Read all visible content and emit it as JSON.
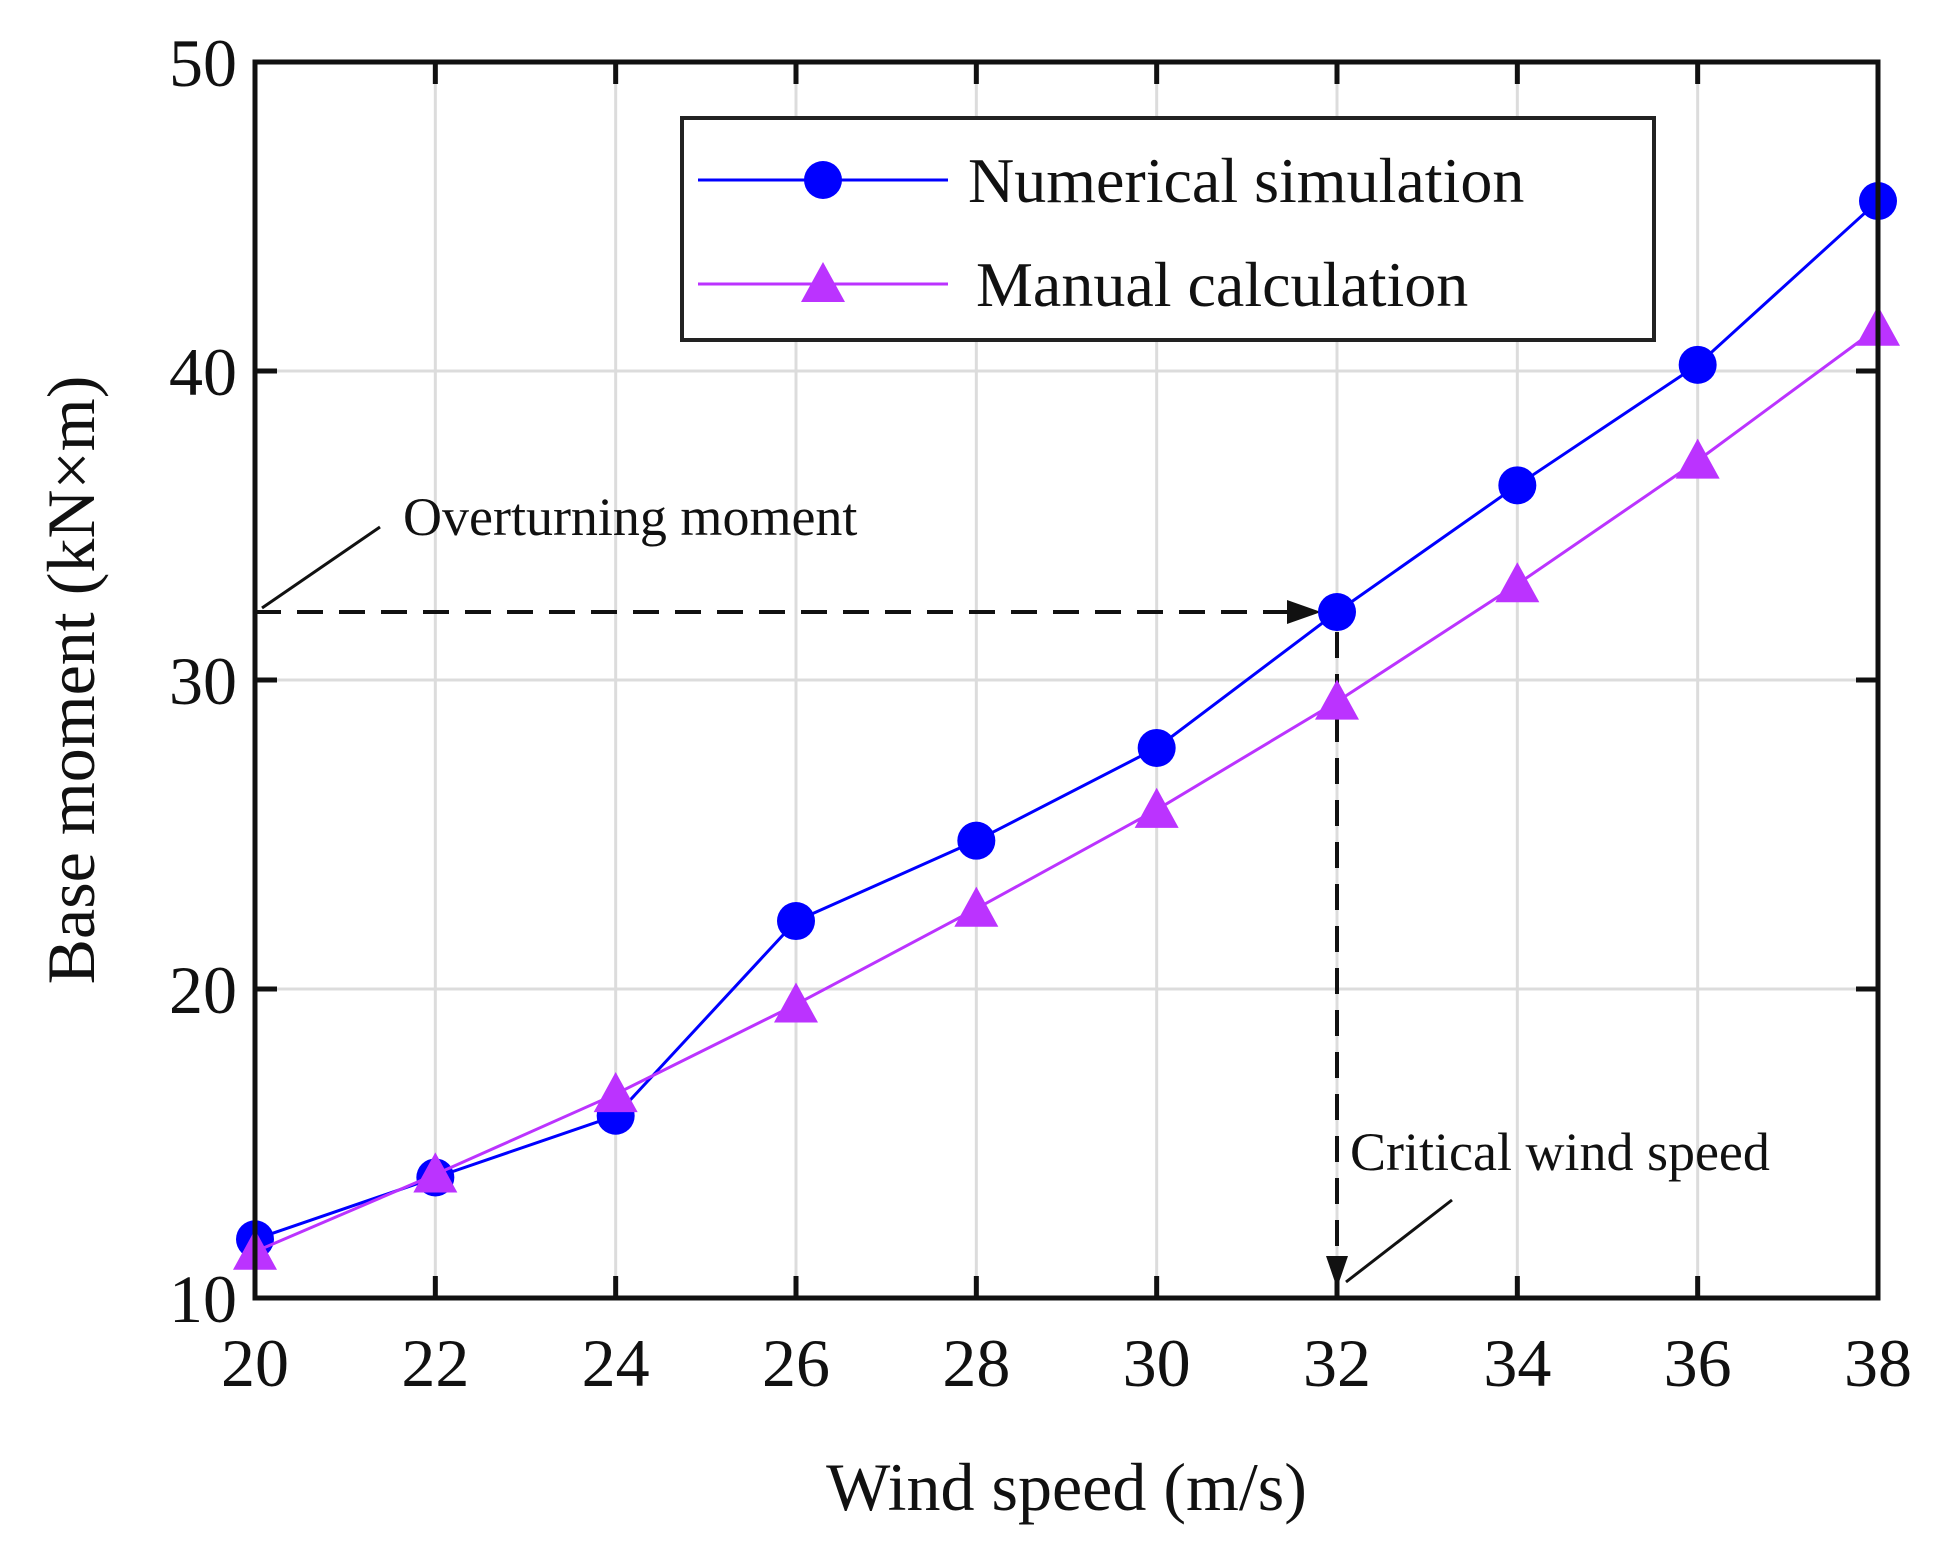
{
  "chart_data": {
    "type": "line",
    "title": "",
    "xlabel": "Wind speed (m/s)",
    "ylabel": "Base moment (kN×m)",
    "xlim": [
      20,
      38
    ],
    "ylim": [
      10,
      50
    ],
    "x_ticks": [
      20,
      22,
      24,
      26,
      28,
      30,
      32,
      34,
      36,
      38
    ],
    "y_ticks": [
      10,
      20,
      30,
      40,
      50
    ],
    "grid": true,
    "legend_position": "top-right",
    "x": [
      20,
      22,
      24,
      26,
      28,
      30,
      32,
      34,
      36,
      38
    ],
    "series": [
      {
        "name": "Numerical simulation",
        "color": "#0000ff",
        "marker": "circle",
        "values": [
          11.9,
          13.9,
          15.9,
          22.2,
          24.8,
          27.8,
          32.2,
          36.3,
          40.2,
          45.5
        ]
      },
      {
        "name": "Manual calculation",
        "color": "#bb33ff",
        "marker": "triangle",
        "values": [
          11.5,
          14.0,
          16.6,
          19.5,
          22.6,
          25.8,
          29.3,
          33.1,
          37.1,
          41.4
        ]
      }
    ],
    "reference": {
      "overturning_moment": 32.2,
      "critical_wind_speed": 32
    },
    "annotations": [
      {
        "id": "overturning",
        "text": "Overturning moment"
      },
      {
        "id": "critical",
        "text": "Critical wind speed"
      }
    ]
  }
}
